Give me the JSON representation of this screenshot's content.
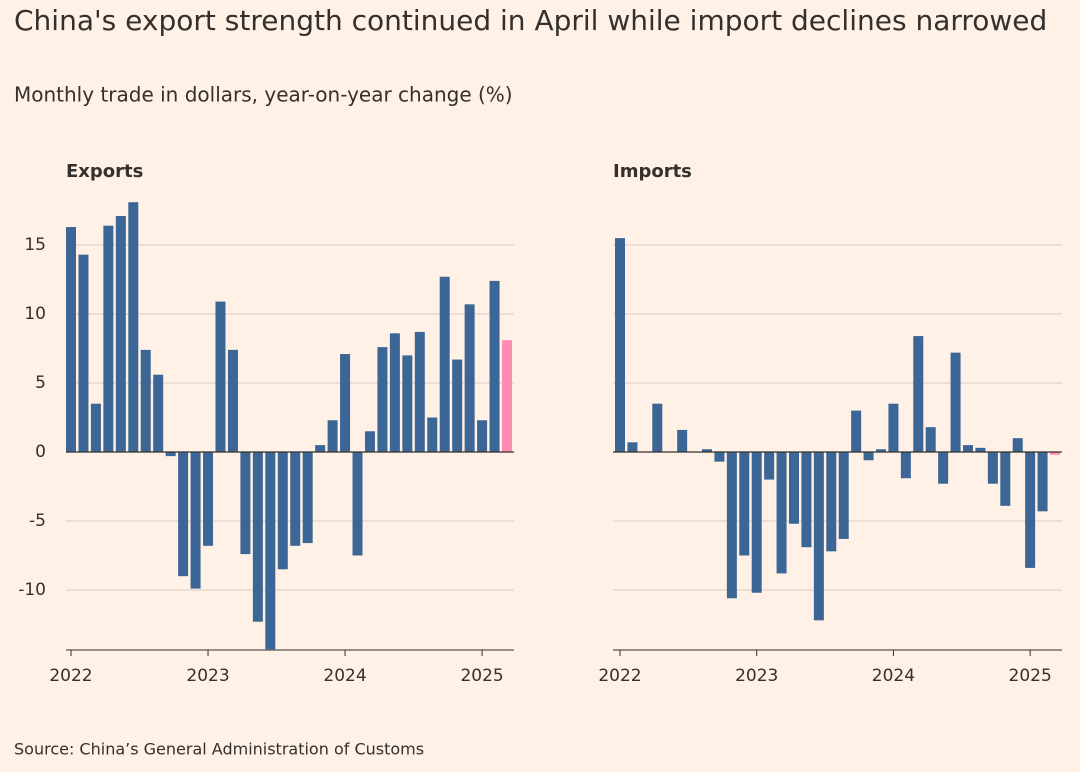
{
  "title": "China's export strength continued in April while import declines narrowed",
  "subtitle": "Monthly trade in dollars, year-on-year change (%)",
  "source": "Source: China’s General Administration of Customs",
  "chart_data": [
    {
      "type": "bar",
      "title": "Exports",
      "categories": [
        "2022",
        null,
        null,
        null,
        null,
        null,
        null,
        null,
        null,
        null,
        null,
        "2023",
        null,
        null,
        null,
        null,
        null,
        null,
        null,
        null,
        null,
        null,
        "2024",
        null,
        null,
        null,
        null,
        null,
        null,
        null,
        null,
        null,
        null,
        "2025",
        null,
        null
      ],
      "values": [
        16.3,
        14.3,
        3.5,
        16.4,
        17.1,
        18.1,
        7.4,
        5.6,
        -0.3,
        -9.0,
        -9.9,
        -6.8,
        10.9,
        7.4,
        -7.4,
        -12.3,
        -14.3,
        -8.5,
        -6.8,
        -6.6,
        0.5,
        2.3,
        7.1,
        -7.5,
        1.5,
        7.6,
        8.6,
        7.0,
        8.7,
        2.5,
        12.7,
        6.7,
        10.7,
        2.3,
        12.4,
        8.1
      ],
      "colors": [
        "#3b6696",
        "#3b6696",
        "#3b6696",
        "#3b6696",
        "#3b6696",
        "#3b6696",
        "#3b6696",
        "#3b6696",
        "#3b6696",
        "#3b6696",
        "#3b6696",
        "#3b6696",
        "#3b6696",
        "#3b6696",
        "#3b6696",
        "#3b6696",
        "#3b6696",
        "#3b6696",
        "#3b6696",
        "#3b6696",
        "#3b6696",
        "#3b6696",
        "#3b6696",
        "#3b6696",
        "#3b6696",
        "#3b6696",
        "#3b6696",
        "#3b6696",
        "#3b6696",
        "#3b6696",
        "#3b6696",
        "#3b6696",
        "#3b6696",
        "#3b6696",
        "#3b6696",
        "#ff8bb0"
      ],
      "ylim": [
        -14.35,
        18.5
      ],
      "yticks": [
        -10,
        -5,
        0,
        5,
        10,
        15
      ],
      "ytick_labels": true,
      "grid": true
    },
    {
      "type": "bar",
      "title": "Imports",
      "categories": [
        "2022",
        null,
        null,
        null,
        null,
        null,
        null,
        null,
        null,
        null,
        null,
        "2023",
        null,
        null,
        null,
        null,
        null,
        null,
        null,
        null,
        null,
        null,
        "2024",
        null,
        null,
        null,
        null,
        null,
        null,
        null,
        null,
        null,
        null,
        "2025",
        null,
        null
      ],
      "values": [
        15.5,
        0.7,
        0,
        3.5,
        0,
        1.6,
        0,
        0.2,
        -0.7,
        -10.6,
        -7.5,
        -10.2,
        -2.0,
        -8.8,
        -5.2,
        -6.9,
        -12.2,
        -7.2,
        -6.3,
        3.0,
        -0.6,
        0.2,
        3.5,
        -1.9,
        8.4,
        1.8,
        -2.3,
        7.2,
        0.5,
        0.3,
        -2.3,
        -3.9,
        1.0,
        -8.4,
        -4.3,
        -0.2
      ],
      "colors": [
        "#3b6696",
        "#3b6696",
        "#3b6696",
        "#3b6696",
        "#3b6696",
        "#3b6696",
        "#3b6696",
        "#3b6696",
        "#3b6696",
        "#3b6696",
        "#3b6696",
        "#3b6696",
        "#3b6696",
        "#3b6696",
        "#3b6696",
        "#3b6696",
        "#3b6696",
        "#3b6696",
        "#3b6696",
        "#3b6696",
        "#3b6696",
        "#3b6696",
        "#3b6696",
        "#3b6696",
        "#3b6696",
        "#3b6696",
        "#3b6696",
        "#3b6696",
        "#3b6696",
        "#3b6696",
        "#3b6696",
        "#3b6696",
        "#3b6696",
        "#3b6696",
        "#3b6696",
        "#ff8bb0"
      ],
      "ylim": [
        -14.35,
        18.5
      ],
      "yticks": [
        -10,
        -5,
        0,
        5,
        10,
        15
      ],
      "ytick_labels": false,
      "grid": true
    }
  ]
}
